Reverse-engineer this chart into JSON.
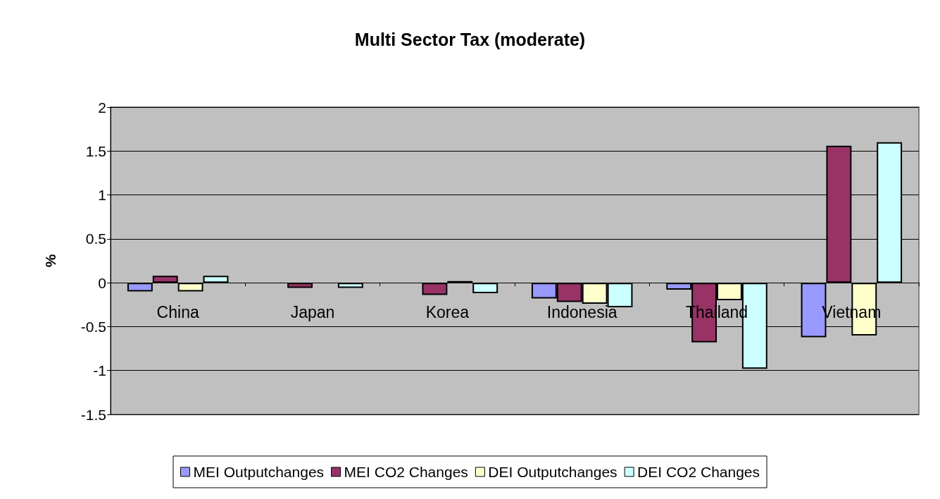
{
  "chart_data": {
    "type": "bar",
    "title": "Multi Sector Tax (moderate)",
    "ylabel": "%",
    "categories": [
      "China",
      "Japan",
      "Korea",
      "Indonesia",
      "Thailand",
      "Vietnam"
    ],
    "series": [
      {
        "name": "MEI Outputchanges",
        "color": "#9999ff",
        "values": [
          -0.1,
          null,
          null,
          -0.18,
          -0.08,
          -0.62
        ]
      },
      {
        "name": "MEI CO2 Changes",
        "color": "#993366",
        "values": [
          0.08,
          -0.06,
          -0.14,
          -0.22,
          -0.68,
          1.56
        ]
      },
      {
        "name": "DEI Outputchanges",
        "color": "#ffffcc",
        "values": [
          -0.1,
          null,
          0.02,
          -0.24,
          -0.2,
          -0.6
        ]
      },
      {
        "name": "DEI CO2 Changes",
        "color": "#ccffff",
        "values": [
          0.08,
          -0.06,
          -0.12,
          -0.28,
          -0.98,
          1.6
        ]
      }
    ],
    "ylim": [
      -1.5,
      2
    ],
    "yticks": [
      -1.5,
      -1,
      -0.5,
      0,
      0.5,
      1,
      1.5,
      2
    ],
    "grid": "y",
    "legend": "bottom"
  }
}
